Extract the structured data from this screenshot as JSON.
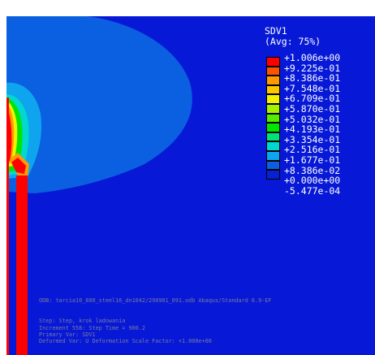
{
  "legend": {
    "variable": "SDV1",
    "averaging": "(Avg: 75%)",
    "levels": [
      {
        "label": "+1.006e+00",
        "color": "#ff0000"
      },
      {
        "label": "+9.225e-01",
        "color": "#ff5300"
      },
      {
        "label": "+8.386e-01",
        "color": "#ff9a00"
      },
      {
        "label": "+7.548e-01",
        "color": "#ffc700"
      },
      {
        "label": "+6.709e-01",
        "color": "#f2f200"
      },
      {
        "label": "+5.870e-01",
        "color": "#a6f000"
      },
      {
        "label": "+5.032e-01",
        "color": "#56ec00"
      },
      {
        "label": "+4.193e-01",
        "color": "#00e600"
      },
      {
        "label": "+3.354e-01",
        "color": "#00e27a"
      },
      {
        "label": "+2.516e-01",
        "color": "#00d8d0"
      },
      {
        "label": "+1.677e-01",
        "color": "#0ea4ee"
      },
      {
        "label": "+8.386e-02",
        "color": "#0a60e0"
      },
      {
        "label": "+0.000e+00",
        "color": "#0620d4"
      },
      {
        "label": "-5.477e-04",
        "color": ""
      }
    ]
  },
  "info": {
    "odb": "ODB: tarcia10_800_steel16_dn1042/290901_091.odb    Abaqus/Standard 6.9-EF",
    "step": "Step: Step, krok ladowania",
    "increment": "Increment    558: Step Time =    900.2",
    "primary_var": "Primary Var: SDV1",
    "deformed_var": "Deformed Var: U   Deformation Scale Factor: +1.000e+00"
  },
  "colors": {
    "background": "#0719d6",
    "contour_1": "#0a60e0",
    "contour_2": "#0ea4ee",
    "contour_3": "#00d8d0",
    "contour_4": "#00e600",
    "contour_5": "#f2f200",
    "contour_6": "#ff9a00",
    "contour_max": "#ff0000"
  }
}
